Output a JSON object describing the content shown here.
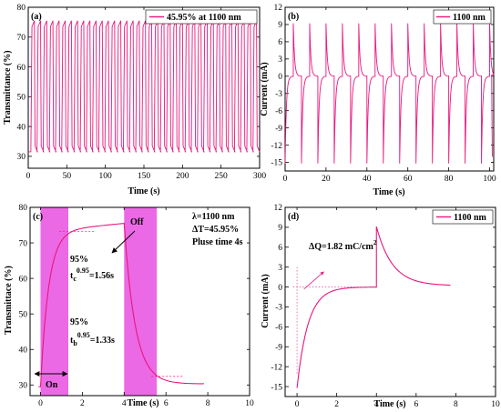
{
  "chart_data": [
    {
      "id": "a",
      "panel_label": "(a)",
      "type": "line",
      "xlabel": "Time (s)",
      "ylabel": "Transmittance (%)",
      "xlim": [
        0,
        300
      ],
      "ylim": [
        26,
        80
      ],
      "xticks": [
        0,
        50,
        100,
        150,
        200,
        250,
        300
      ],
      "yticks": [
        30,
        40,
        50,
        60,
        70,
        80
      ],
      "legend": {
        "label": "45.95% at 1100 nm",
        "placement": "top-right"
      },
      "color": "#e8177e",
      "signal": {
        "kind": "square-wave",
        "period_s": 8,
        "cycles": 37,
        "t_start": 4,
        "max": 75.5,
        "min": 31.5
      }
    },
    {
      "id": "b",
      "panel_label": "(b)",
      "type": "line",
      "xlabel": "Time (s)",
      "ylabel": "Current (mA)",
      "xlim": [
        0,
        102
      ],
      "ylim": [
        -16.5,
        12
      ],
      "xticks": [
        0,
        20,
        40,
        60,
        80,
        100
      ],
      "yticks": [
        -15,
        -12,
        -9,
        -6,
        -3,
        0,
        3,
        6,
        9,
        12
      ],
      "legend": {
        "label": "1100 nm",
        "placement": "top-right"
      },
      "color": "#e8177e",
      "signal": {
        "kind": "current-spikes",
        "period_s": 8,
        "cycles": 13,
        "neg_peak": -15.2,
        "pos_peak": 9.2
      }
    },
    {
      "id": "c",
      "panel_label": "(c)",
      "type": "line",
      "xlabel": "Time (s)",
      "ylabel": "Transmittace (%)",
      "xlim": [
        -0.5,
        10
      ],
      "ylim": [
        27,
        80
      ],
      "xticks": [
        0,
        2,
        4,
        6,
        8,
        10
      ],
      "yticks": [
        30,
        40,
        50,
        60,
        70,
        80
      ],
      "color": "#e8177e",
      "shaded_regions": [
        [
          0,
          1.33
        ],
        [
          4,
          5.56
        ]
      ],
      "info_lines": [
        "λ=1100 nm",
        "ΔT=45.95%",
        "Pluse time 4s"
      ],
      "annotations": {
        "off": "Off",
        "on": "On",
        "pct_top": "95%",
        "pct_bottom": "95%",
        "tc_t": "t",
        "tc_sub": "c",
        "tc_sup": "0.95",
        "tc_val": "=1.56s",
        "tb_t": "t",
        "tb_sub": "b",
        "tb_sup": "0.95",
        "tb_val": "=1.33s"
      },
      "signal": {
        "max": 75.5,
        "min": 29.5,
        "plateau_mid": 73.2,
        "t_end": 7.8,
        "final": 30.3
      }
    },
    {
      "id": "d",
      "panel_label": "(d)",
      "type": "line",
      "xlabel": "Time (s)",
      "ylabel": "Current (mA)",
      "xlim": [
        -0.6,
        10
      ],
      "ylim": [
        -16.5,
        12
      ],
      "xticks": [
        0,
        2,
        4,
        6,
        8,
        10
      ],
      "yticks": [
        -15,
        -12,
        -9,
        -6,
        -3,
        0,
        3,
        6,
        9,
        12
      ],
      "legend": {
        "label": "1100 nm",
        "placement": "top-right"
      },
      "annotation_text": "ΔQ=1.82 mC/cm",
      "annotation_sup": "2",
      "color": "#e8177e",
      "signal": {
        "neg_peak": -15.2,
        "pos_peak": 9.1,
        "switch_t": 4,
        "t_end": 7.7
      }
    }
  ]
}
